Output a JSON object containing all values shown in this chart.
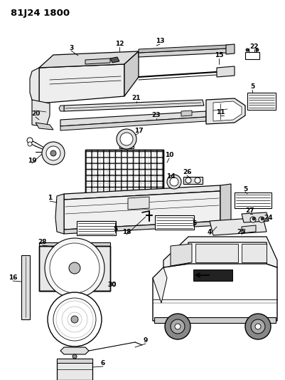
{
  "title": "81J24 1800",
  "bg_color": "#ffffff",
  "fig_width": 4.01,
  "fig_height": 5.33,
  "dpi": 100,
  "title_fontsize": 9.5,
  "label_fontsize": 6.5
}
